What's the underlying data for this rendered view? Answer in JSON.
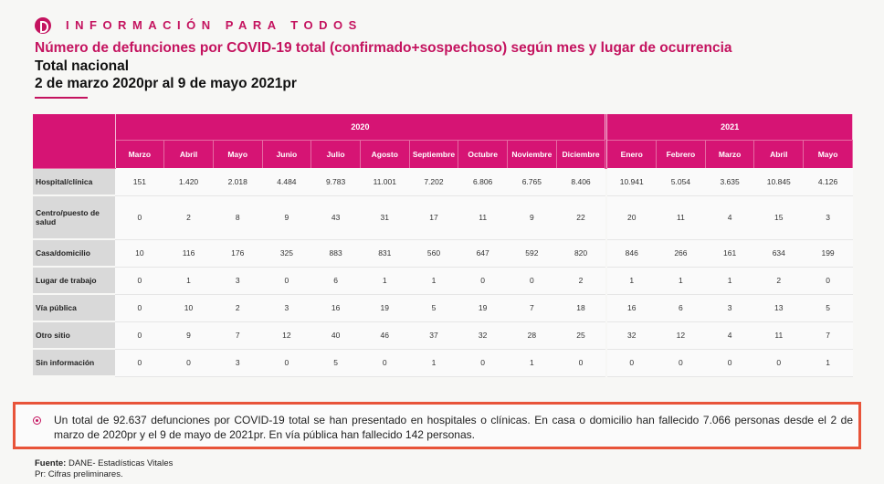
{
  "header": {
    "brand": "INFORMACIÓN PARA TODOS",
    "title": "Número de defunciones por COVID-19 total (confirmado+sospechoso) según mes y lugar de ocurrencia",
    "subtitle1": "Total nacional",
    "subtitle2": "2 de marzo 2020pr al 9 de mayo 2021pr"
  },
  "table": {
    "years": [
      "2020",
      "2021"
    ],
    "months_2020": [
      "Marzo",
      "Abril",
      "Mayo",
      "Junio",
      "Julio",
      "Agosto",
      "Septiembre",
      "Octubre",
      "Noviembre",
      "Diciembre"
    ],
    "months_2021": [
      "Enero",
      "Febrero",
      "Marzo",
      "Abril",
      "Mayo"
    ],
    "rows": [
      {
        "label": "Hospital/clínica",
        "v2020": [
          "151",
          "1.420",
          "2.018",
          "4.484",
          "9.783",
          "11.001",
          "7.202",
          "6.806",
          "6.765",
          "8.406"
        ],
        "v2021": [
          "10.941",
          "5.054",
          "3.635",
          "10.845",
          "4.126"
        ]
      },
      {
        "label": "Centro/puesto de salud",
        "v2020": [
          "0",
          "2",
          "8",
          "9",
          "43",
          "31",
          "17",
          "11",
          "9",
          "22"
        ],
        "v2021": [
          "20",
          "11",
          "4",
          "15",
          "3"
        ]
      },
      {
        "label": "Casa/domicilio",
        "v2020": [
          "10",
          "116",
          "176",
          "325",
          "883",
          "831",
          "560",
          "647",
          "592",
          "820"
        ],
        "v2021": [
          "846",
          "266",
          "161",
          "634",
          "199"
        ]
      },
      {
        "label": "Lugar de trabajo",
        "v2020": [
          "0",
          "1",
          "3",
          "0",
          "6",
          "1",
          "1",
          "0",
          "0",
          "2"
        ],
        "v2021": [
          "1",
          "1",
          "1",
          "2",
          "0"
        ]
      },
      {
        "label": "Vía pública",
        "v2020": [
          "0",
          "10",
          "2",
          "3",
          "16",
          "19",
          "5",
          "19",
          "7",
          "18"
        ],
        "v2021": [
          "16",
          "6",
          "3",
          "13",
          "5"
        ]
      },
      {
        "label": "Otro sitio",
        "v2020": [
          "0",
          "9",
          "7",
          "12",
          "40",
          "46",
          "37",
          "32",
          "28",
          "25"
        ],
        "v2021": [
          "32",
          "12",
          "4",
          "11",
          "7"
        ]
      },
      {
        "label": "Sin información",
        "v2020": [
          "0",
          "0",
          "3",
          "0",
          "5",
          "0",
          "1",
          "0",
          "1",
          "0"
        ],
        "v2021": [
          "0",
          "0",
          "0",
          "0",
          "1"
        ]
      }
    ]
  },
  "note": {
    "text": "Un total de 92.637 defunciones por COVID-19 total se han presentado en hospitales o clínicas. En casa o domicilio han fallecido 7.066 personas desde el 2 de marzo de 2020pr y el 9 de mayo de 2021pr. En vía pública han fallecido 142 personas."
  },
  "source": {
    "label": "Fuente:",
    "text": " DANE- Estadísticas Vitales",
    "footnote": "Pr: Cifras preliminares."
  },
  "colors": {
    "accent": "#c4135f",
    "header_bg": "#d61474",
    "highlight_border": "#e8543a"
  }
}
